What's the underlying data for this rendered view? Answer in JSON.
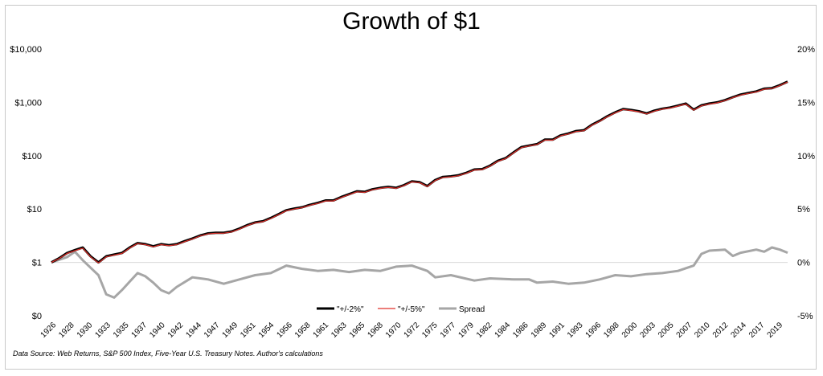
{
  "chart_data": {
    "type": "line",
    "title": "Growth of $1",
    "footnote": "Data Source: Web Returns, S&P 500 Index, Five-Year U.S. Treasury Notes. Author's calculations",
    "x_ticks": [
      "1926",
      "1928",
      "1930",
      "1933",
      "1935",
      "1937",
      "1940",
      "1942",
      "1944",
      "1947",
      "1949",
      "1951",
      "1954",
      "1956",
      "1958",
      "1961",
      "1963",
      "1965",
      "1968",
      "1970",
      "1972",
      "1975",
      "1977",
      "1979",
      "1982",
      "1984",
      "1986",
      "1989",
      "1991",
      "1993",
      "1996",
      "1998",
      "2000",
      "2003",
      "2005",
      "2007",
      "2010",
      "2012",
      "2014",
      "2017",
      "2019"
    ],
    "xlim": [
      1926,
      2020
    ],
    "left_axis": {
      "scale": "log",
      "ylim": [
        0.1,
        10000
      ],
      "tick_values": [
        0.1,
        1,
        10,
        100,
        1000,
        10000
      ],
      "tick_labels": [
        "$0",
        "$1",
        "$10",
        "$100",
        "$1,000",
        "$10,000"
      ]
    },
    "right_axis": {
      "scale": "linear",
      "ylim": [
        -5,
        20
      ],
      "tick_values": [
        -5,
        0,
        5,
        10,
        15,
        20
      ],
      "tick_labels": [
        "-5%",
        "0%",
        "5%",
        "10%",
        "15%",
        "20%"
      ]
    },
    "legend": {
      "position": "bottom-center"
    },
    "series": [
      {
        "name": "\"+/-2%\"",
        "axis": "left",
        "color": "#000000",
        "x": [
          1926,
          1927,
          1928,
          1929,
          1930,
          1931,
          1932,
          1933,
          1934,
          1935,
          1936,
          1937,
          1938,
          1939,
          1940,
          1941,
          1942,
          1943,
          1944,
          1945,
          1946,
          1947,
          1948,
          1949,
          1950,
          1951,
          1952,
          1953,
          1954,
          1955,
          1956,
          1957,
          1958,
          1959,
          1960,
          1961,
          1962,
          1963,
          1964,
          1965,
          1966,
          1967,
          1968,
          1969,
          1970,
          1971,
          1972,
          1973,
          1974,
          1975,
          1976,
          1977,
          1978,
          1979,
          1980,
          1981,
          1982,
          1983,
          1984,
          1985,
          1986,
          1987,
          1988,
          1989,
          1990,
          1991,
          1992,
          1993,
          1994,
          1995,
          1996,
          1997,
          1998,
          1999,
          2000,
          2001,
          2002,
          2003,
          2004,
          2005,
          2006,
          2007,
          2008,
          2009,
          2010,
          2011,
          2012,
          2013,
          2014,
          2015,
          2016,
          2017,
          2018,
          2019,
          2020
        ],
        "values": [
          1.0,
          1.2,
          1.5,
          1.7,
          1.9,
          1.3,
          1.0,
          1.3,
          1.4,
          1.5,
          1.9,
          2.3,
          2.2,
          2.0,
          2.2,
          2.1,
          2.2,
          2.5,
          2.8,
          3.2,
          3.5,
          3.6,
          3.6,
          3.8,
          4.3,
          5.0,
          5.6,
          5.9,
          6.8,
          8.0,
          9.5,
          10.2,
          10.8,
          12.0,
          13.0,
          14.5,
          14.5,
          16.8,
          19.0,
          21.5,
          21.0,
          23.5,
          25.0,
          26.0,
          25.0,
          28.0,
          33.0,
          32.0,
          27.0,
          35.0,
          40.0,
          41.0,
          43.0,
          48.0,
          55.0,
          56.0,
          65.0,
          80.0,
          90.0,
          115.0,
          145.0,
          155.0,
          165.0,
          200.0,
          200.0,
          240.0,
          260.0,
          290.0,
          300.0,
          380.0,
          450.0,
          550.0,
          650.0,
          750.0,
          720.0,
          680.0,
          620.0,
          700.0,
          760.0,
          800.0,
          870.0,
          950.0,
          730.0,
          880.0,
          950.0,
          1000.0,
          1100.0,
          1250.0,
          1400.0,
          1500.0,
          1600.0,
          1800.0,
          1850.0,
          2100.0,
          2450.0
        ]
      },
      {
        "name": "\"+/-5%\"",
        "axis": "left",
        "color": "#e0302a",
        "x": [
          1926,
          1927,
          1928,
          1929,
          1930,
          1931,
          1932,
          1933,
          1934,
          1935,
          1936,
          1937,
          1938,
          1939,
          1940,
          1941,
          1942,
          1943,
          1944,
          1945,
          1946,
          1947,
          1948,
          1949,
          1950,
          1951,
          1952,
          1953,
          1954,
          1955,
          1956,
          1957,
          1958,
          1959,
          1960,
          1961,
          1962,
          1963,
          1964,
          1965,
          1966,
          1967,
          1968,
          1969,
          1970,
          1971,
          1972,
          1973,
          1974,
          1975,
          1976,
          1977,
          1978,
          1979,
          1980,
          1981,
          1982,
          1983,
          1984,
          1985,
          1986,
          1987,
          1988,
          1989,
          1990,
          1991,
          1992,
          1993,
          1994,
          1995,
          1996,
          1997,
          1998,
          1999,
          2000,
          2001,
          2002,
          2003,
          2004,
          2005,
          2006,
          2007,
          2008,
          2009,
          2010,
          2011,
          2012,
          2013,
          2014,
          2015,
          2016,
          2017,
          2018,
          2019,
          2020
        ],
        "values": [
          1.0,
          1.18,
          1.47,
          1.66,
          1.85,
          1.27,
          0.98,
          1.27,
          1.37,
          1.47,
          1.86,
          2.25,
          2.15,
          1.96,
          2.15,
          2.06,
          2.15,
          2.45,
          2.74,
          3.13,
          3.42,
          3.52,
          3.52,
          3.72,
          4.2,
          4.9,
          5.5,
          5.8,
          6.65,
          7.85,
          9.3,
          10.0,
          10.6,
          11.8,
          12.7,
          14.2,
          14.2,
          16.5,
          18.6,
          21.0,
          20.6,
          23.0,
          24.5,
          25.5,
          24.5,
          27.4,
          32.3,
          31.3,
          26.5,
          34.3,
          39.2,
          40.2,
          42.1,
          47.0,
          53.9,
          54.9,
          63.7,
          78.4,
          88.2,
          112.7,
          142.1,
          151.9,
          161.7,
          196.0,
          196.0,
          235.2,
          254.8,
          284.2,
          294.0,
          372.4,
          441.0,
          539.0,
          637.0,
          735.0,
          705.6,
          666.4,
          607.6,
          686.0,
          744.8,
          784.0,
          852.6,
          931.0,
          715.4,
          862.4,
          931.0,
          980.0,
          1078.0,
          1225.0,
          1372.0,
          1470.0,
          1568.0,
          1764.0,
          1813.0,
          2058.0,
          2401.0
        ]
      },
      {
        "name": "Spread",
        "axis": "right",
        "color": "#a6a6a6",
        "x": [
          1926,
          1928,
          1929,
          1930,
          1931,
          1932,
          1933,
          1934,
          1935,
          1936,
          1937,
          1938,
          1939,
          1940,
          1941,
          1942,
          1944,
          1946,
          1948,
          1950,
          1952,
          1954,
          1956,
          1958,
          1960,
          1962,
          1964,
          1966,
          1968,
          1970,
          1972,
          1974,
          1975,
          1977,
          1980,
          1982,
          1985,
          1987,
          1988,
          1990,
          1992,
          1994,
          1996,
          1998,
          2000,
          2002,
          2004,
          2006,
          2008,
          2009,
          2010,
          2012,
          2013,
          2014,
          2016,
          2017,
          2018,
          2019,
          2020
        ],
        "values": [
          0.0,
          0.5,
          1.0,
          0.2,
          -0.5,
          -1.2,
          -3.0,
          -3.3,
          -2.6,
          -1.8,
          -1.0,
          -1.3,
          -1.9,
          -2.6,
          -2.9,
          -2.3,
          -1.4,
          -1.6,
          -2.0,
          -1.6,
          -1.2,
          -1.0,
          -0.3,
          -0.6,
          -0.8,
          -0.7,
          -0.9,
          -0.7,
          -0.8,
          -0.4,
          -0.3,
          -0.8,
          -1.4,
          -1.2,
          -1.7,
          -1.5,
          -1.6,
          -1.6,
          -1.9,
          -1.8,
          -2.0,
          -1.9,
          -1.6,
          -1.2,
          -1.3,
          -1.1,
          -1.0,
          -0.8,
          -0.3,
          0.8,
          1.1,
          1.2,
          0.6,
          0.9,
          1.2,
          1.0,
          1.4,
          1.2,
          0.9
        ]
      }
    ]
  }
}
